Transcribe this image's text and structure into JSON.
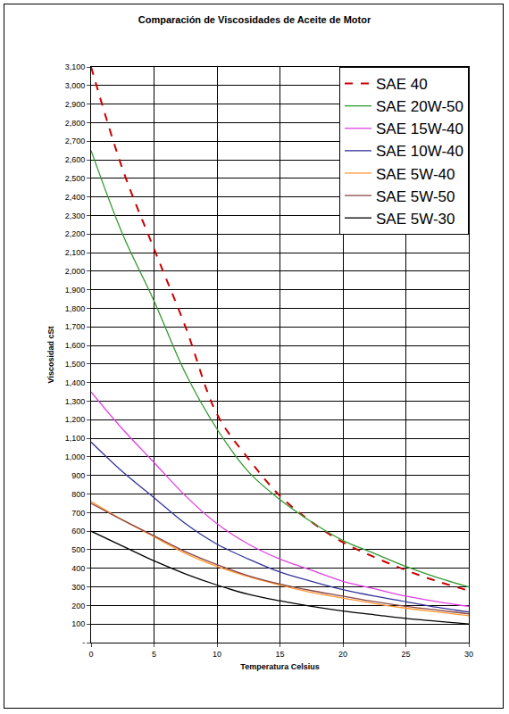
{
  "chart_data": {
    "type": "line",
    "title": "Comparación de Viscosidades de Aceite de Motor",
    "x_label": "Temperatura Celsius",
    "y_label": "Viscosidad cSt",
    "x": [
      0,
      2.5,
      5,
      7.5,
      10,
      12.5,
      15,
      17.5,
      20,
      22.5,
      25,
      27.5,
      30
    ],
    "series": [
      {
        "name": "SAE 40",
        "color": "#cc0000",
        "line_style": "dash",
        "values": [
          3100,
          2550,
          2120,
          1700,
          1230,
          990,
          790,
          650,
          540,
          460,
          390,
          330,
          280
        ]
      },
      {
        "name": "SAE 20W-50",
        "color": "#339933",
        "line_style": "solid",
        "values": [
          2650,
          2200,
          1840,
          1450,
          1150,
          920,
          770,
          650,
          550,
          480,
          410,
          350,
          300
        ]
      },
      {
        "name": "SAE 15W-40",
        "color": "#e040e0",
        "line_style": "solid",
        "values": [
          1350,
          1150,
          970,
          790,
          640,
          530,
          450,
          390,
          330,
          290,
          250,
          220,
          195
        ]
      },
      {
        "name": "SAE 10W-40",
        "color": "#333399",
        "line_style": "solid",
        "values": [
          1080,
          920,
          780,
          640,
          530,
          450,
          380,
          330,
          285,
          250,
          220,
          190,
          165
        ]
      },
      {
        "name": "SAE 5W-40",
        "color": "#ff9933",
        "line_style": "solid",
        "values": [
          760,
          660,
          570,
          480,
          410,
          355,
          310,
          270,
          240,
          210,
          185,
          165,
          145
        ]
      },
      {
        "name": "SAE 5W-50",
        "color": "#8b4545",
        "line_style": "solid",
        "values": [
          750,
          660,
          575,
          490,
          420,
          360,
          315,
          280,
          250,
          220,
          195,
          175,
          155
        ]
      },
      {
        "name": "SAE 5W-30",
        "color": "#000000",
        "line_style": "solid",
        "values": [
          600,
          520,
          440,
          370,
          310,
          260,
          225,
          195,
          170,
          150,
          130,
          115,
          100
        ]
      }
    ],
    "xlim": [
      0,
      30
    ],
    "xticks": [
      0,
      5,
      10,
      15,
      20,
      25,
      30
    ],
    "ylim": [
      0,
      3100
    ],
    "yticks": [
      {
        "value": 0,
        "label": "-"
      },
      100,
      200,
      300,
      400,
      500,
      600,
      700,
      800,
      900,
      {
        "value": 1000,
        "label": "1,000"
      },
      {
        "value": 1100,
        "label": "1,100"
      },
      {
        "value": 1200,
        "label": "1,200"
      },
      {
        "value": 1300,
        "label": "1,300"
      },
      {
        "value": 1400,
        "label": "1,400"
      },
      {
        "value": 1500,
        "label": "1,500"
      },
      {
        "value": 1600,
        "label": "1,600"
      },
      {
        "value": 1700,
        "label": "1,700"
      },
      {
        "value": 1800,
        "label": "1,800"
      },
      {
        "value": 1900,
        "label": "1,900"
      },
      {
        "value": 2000,
        "label": "2,000"
      },
      {
        "value": 2100,
        "label": "2,100"
      },
      {
        "value": 2200,
        "label": "2,200"
      },
      {
        "value": 2300,
        "label": "2,300"
      },
      {
        "value": 2400,
        "label": "2,400"
      },
      {
        "value": 2500,
        "label": "2,500"
      },
      {
        "value": 2600,
        "label": "2,600"
      },
      {
        "value": 2700,
        "label": "2,700"
      },
      {
        "value": 2800,
        "label": "2,800"
      },
      {
        "value": 2900,
        "label": "2,900"
      },
      {
        "value": 3000,
        "label": "3,000"
      },
      {
        "value": 3100,
        "label": "3,100"
      }
    ],
    "grid": true,
    "legend": "top right"
  }
}
